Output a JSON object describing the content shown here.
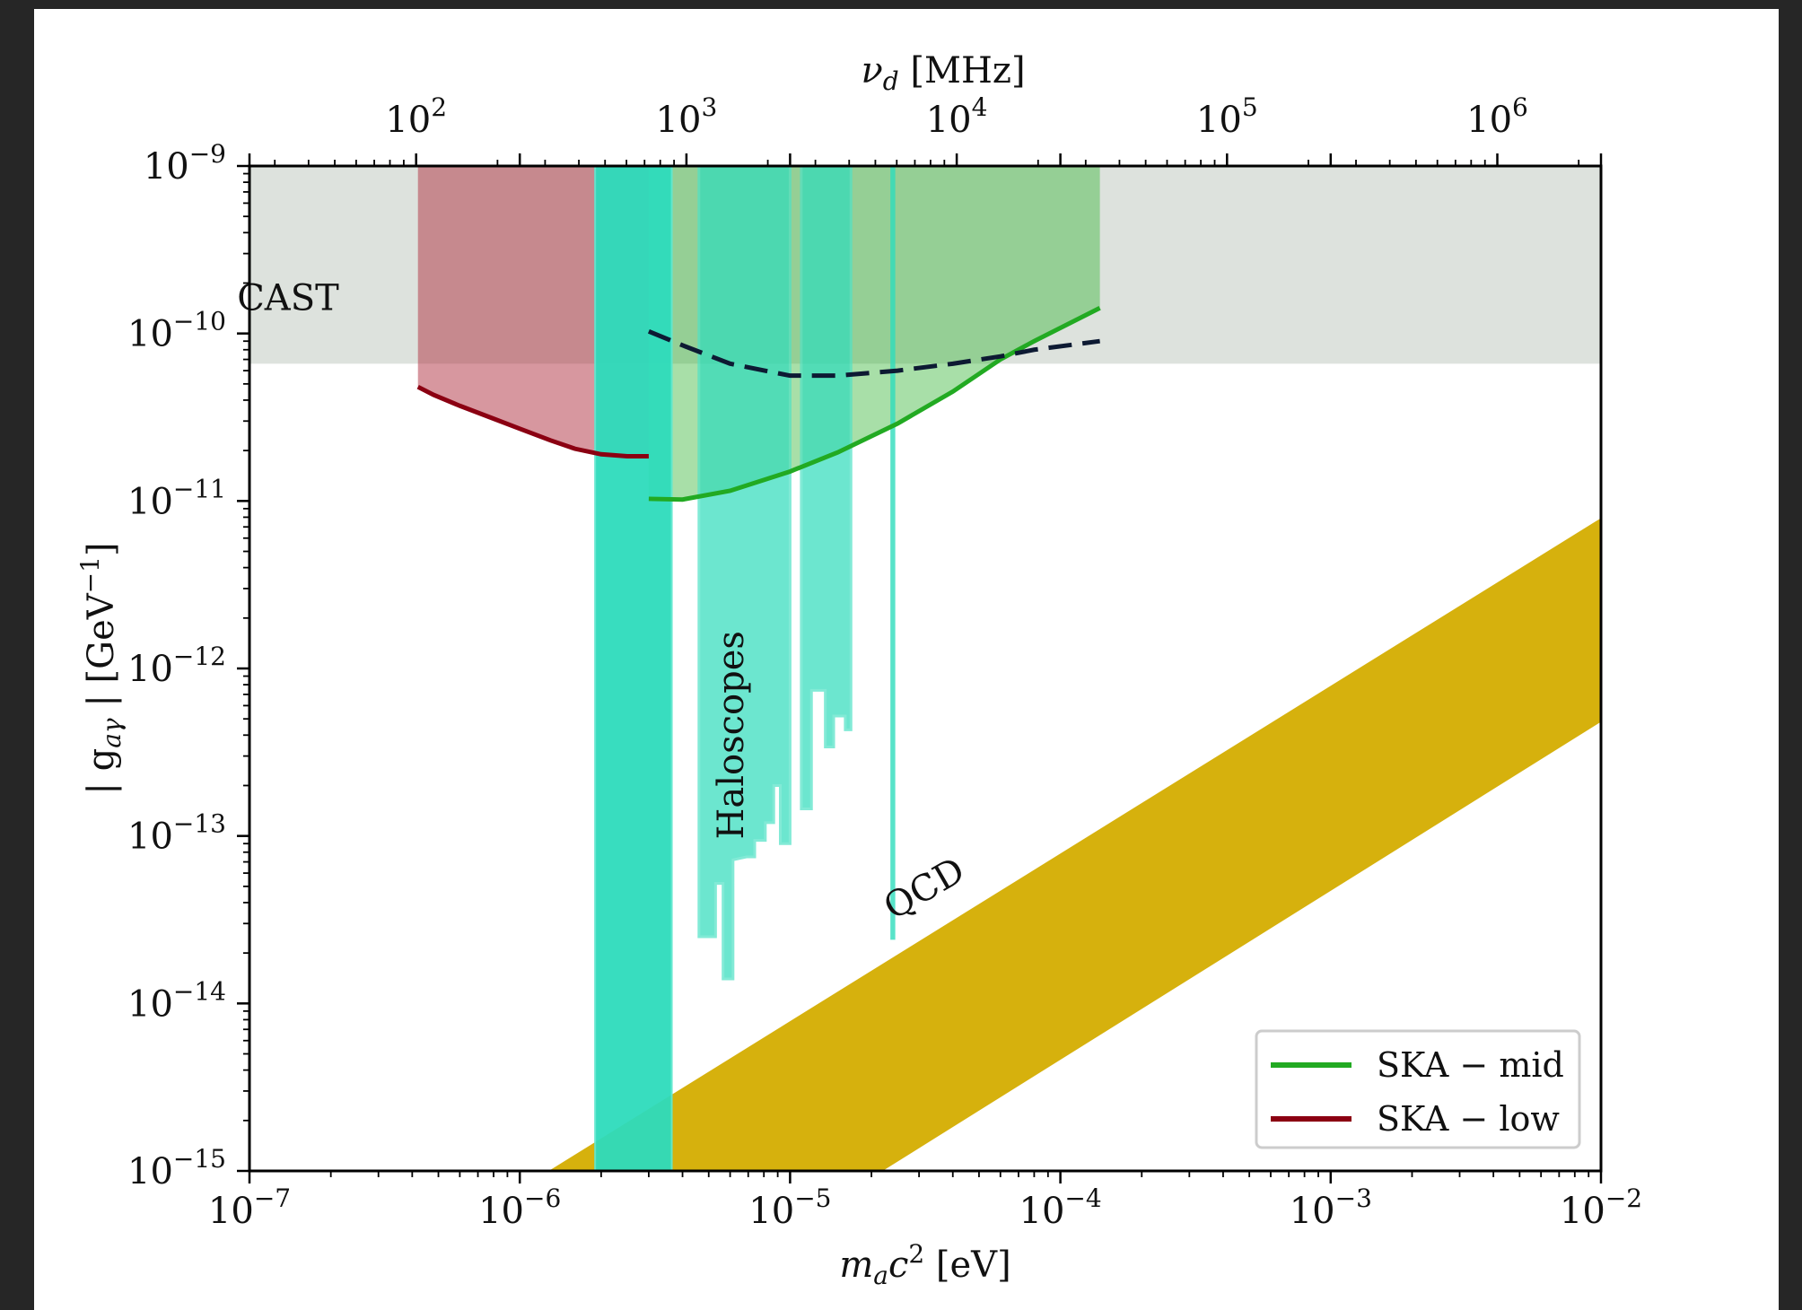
{
  "chart_data": {
    "type": "area",
    "xlabel_main": "m",
    "xlabel_sub": "a",
    "xlabel_tail": "c",
    "xlabel_sup": "2",
    "xlabel_unit": " [eV]",
    "top_label_main": "ν",
    "top_label_sub": "d",
    "top_label_unit": " [MHz]",
    "ylabel_pre": "| g",
    "ylabel_sub": "aγ",
    "ylabel_mid": " | [GeV",
    "ylabel_sup": "−1",
    "ylabel_post": "]",
    "scale": "log-log",
    "xlim": [
      1e-07,
      0.01
    ],
    "ylim": [
      1e-15,
      1e-09
    ],
    "top_xlim_mhz": [
      24.18,
      2418000
    ],
    "x_ticks": [
      {
        "value": 1e-07,
        "base": "10",
        "exp": "−7"
      },
      {
        "value": 1e-06,
        "base": "10",
        "exp": "−6"
      },
      {
        "value": 1e-05,
        "base": "10",
        "exp": "−5"
      },
      {
        "value": 0.0001,
        "base": "10",
        "exp": "−4"
      },
      {
        "value": 0.001,
        "base": "10",
        "exp": "−3"
      },
      {
        "value": 0.01,
        "base": "10",
        "exp": "−2"
      }
    ],
    "y_ticks": [
      {
        "value": 1e-09,
        "base": "10",
        "exp": "−9"
      },
      {
        "value": 1e-10,
        "base": "10",
        "exp": "−10"
      },
      {
        "value": 1e-11,
        "base": "10",
        "exp": "−11"
      },
      {
        "value": 1e-12,
        "base": "10",
        "exp": "−12"
      },
      {
        "value": 1e-13,
        "base": "10",
        "exp": "−13"
      },
      {
        "value": 1e-14,
        "base": "10",
        "exp": "−14"
      },
      {
        "value": 1e-15,
        "base": "10",
        "exp": "−15"
      }
    ],
    "top_ticks": [
      {
        "value": 100,
        "base": "10",
        "exp": "2"
      },
      {
        "value": 1000,
        "base": "10",
        "exp": "3"
      },
      {
        "value": 10000,
        "base": "10",
        "exp": "4"
      },
      {
        "value": 100000,
        "base": "10",
        "exp": "5"
      },
      {
        "value": 1000000,
        "base": "10",
        "exp": "6"
      }
    ],
    "regions": [
      {
        "id": "cast",
        "label": "CAST",
        "color": "#c6cfc6",
        "opacity": 0.6,
        "x": [
          1e-07,
          0.01
        ],
        "y_low": 6.6e-11,
        "y_high": 1e-09
      },
      {
        "id": "ska-low-band",
        "color": "#b03040",
        "opacity": 0.5,
        "x": [
          4.2e-07,
          4.8e-07,
          6e-07,
          8e-07,
          1e-06,
          1.3e-06,
          1.6e-06,
          2e-06,
          2.5e-06,
          3e-06
        ],
        "y_low": [
          4.8e-11,
          4.3e-11,
          3.7e-11,
          3.1e-11,
          2.7e-11,
          2.3e-11,
          2.05e-11,
          1.9e-11,
          1.85e-11,
          1.85e-11
        ],
        "y_high": 1e-09
      },
      {
        "id": "ska-mid-band",
        "color": "#3db83d",
        "opacity": 0.45,
        "x": [
          3e-06,
          4e-06,
          6e-06,
          1e-05,
          1.5e-05,
          2.5e-05,
          4e-05,
          6e-05,
          8e-05,
          0.00014
        ],
        "y_low": [
          1.03e-11,
          1.02e-11,
          1.15e-11,
          1.5e-11,
          1.95e-11,
          2.9e-11,
          4.5e-11,
          7e-11,
          9e-11,
          1.42e-10
        ],
        "y_high": 1e-09
      },
      {
        "id": "halo-main",
        "label": "Haloscopes",
        "color": "#2edcbc",
        "opacity": 0.95,
        "x": [
          1.9e-06,
          3.65e-06
        ],
        "y_low": 1e-15,
        "y_high": 1e-09
      },
      {
        "id": "halo-mid",
        "color": "#2edcbc",
        "opacity": 0.7,
        "x": [
          4.6e-06,
          4.6e-06,
          5.3e-06,
          5.3e-06,
          5.65e-06,
          5.65e-06,
          6.15e-06,
          6.15e-06,
          6.9e-06,
          7.4e-06,
          7.4e-06,
          8.1e-06,
          8.1e-06,
          8.7e-06,
          8.7e-06,
          9.2e-06,
          9.2e-06,
          1e-05,
          1e-05
        ],
        "y_bottom": [
          1e-09,
          2.5e-14,
          2.5e-14,
          5.2e-14,
          5.2e-14,
          1.4e-14,
          1.4e-14,
          7.2e-14,
          7.5e-14,
          7.5e-14,
          9.4e-14,
          9.4e-14,
          1.2e-13,
          1.2e-13,
          2e-13,
          2e-13,
          9e-14,
          9e-14,
          1e-09
        ]
      },
      {
        "id": "halo-right",
        "color": "#2edcbc",
        "opacity": 0.7,
        "x": [
          1.1e-05,
          1.1e-05,
          1.2e-05,
          1.2e-05,
          1.35e-05,
          1.35e-05,
          1.45e-05,
          1.45e-05,
          1.6e-05,
          1.6e-05,
          1.68e-05,
          1.68e-05
        ],
        "y_bottom": [
          1e-09,
          1.45e-13,
          1.45e-13,
          7.4e-13,
          7.4e-13,
          3.4e-13,
          3.4e-13,
          5.2e-13,
          5.2e-13,
          4.3e-13,
          4.3e-13,
          1e-09
        ]
      },
      {
        "id": "halo-narrow",
        "color": "#2edcbc",
        "opacity": 0.8,
        "x": [
          2.35e-05,
          2.45e-05
        ],
        "y_low": 2.4e-14,
        "y_high": 1e-09
      },
      {
        "id": "qcd",
        "label": "QCD",
        "color": "#d4ad00",
        "opacity": 0.95,
        "x": [
          1e-07,
          0.01
        ],
        "upper_line": {
          "x": [
            1.28e-06,
            0.01
          ],
          "y": [
            1e-15,
            7.9e-12
          ]
        },
        "lower_line": {
          "x": [
            2.2e-05,
            0.01
          ],
          "y": [
            1e-15,
            4.8e-13
          ]
        }
      }
    ],
    "series": [
      {
        "name": "SKA − mid",
        "color": "#22aa22",
        "style": "solid",
        "x": [
          3e-06,
          4e-06,
          6e-06,
          1e-05,
          1.5e-05,
          2.5e-05,
          4e-05,
          6e-05,
          8e-05,
          0.00014
        ],
        "y": [
          1.03e-11,
          1.02e-11,
          1.15e-11,
          1.5e-11,
          1.95e-11,
          2.9e-11,
          4.5e-11,
          7e-11,
          9e-11,
          1.42e-10
        ]
      },
      {
        "name": "SKA − low",
        "color": "#8b0012",
        "style": "solid",
        "x": [
          4.2e-07,
          4.8e-07,
          6e-07,
          8e-07,
          1e-06,
          1.3e-06,
          1.6e-06,
          2e-06,
          2.5e-06,
          3e-06
        ],
        "y": [
          4.8e-11,
          4.3e-11,
          3.7e-11,
          3.1e-11,
          2.7e-11,
          2.3e-11,
          2.05e-11,
          1.9e-11,
          1.85e-11,
          1.85e-11
        ]
      },
      {
        "id": "dashed",
        "color": "#0d1a33",
        "style": "dashed",
        "x": [
          3e-06,
          4e-06,
          6e-06,
          1e-05,
          1.5e-05,
          2.5e-05,
          4e-05,
          6e-05,
          8e-05,
          0.00014
        ],
        "y": [
          1.03e-10,
          8.5e-11,
          6.6e-11,
          5.6e-11,
          5.6e-11,
          6e-11,
          6.6e-11,
          7.3e-11,
          8e-11,
          9e-11
        ]
      }
    ],
    "annotations": [
      {
        "text": "CAST",
        "x": 9e-08,
        "y": 1.38e-10,
        "rotate": 0
      },
      {
        "text": "Haloscopes",
        "x": 6.7e-06,
        "y": 4e-13,
        "rotate": -90
      },
      {
        "text": "QCD",
        "x": 3.3e-05,
        "y": 4.2e-14,
        "rotate": -30
      }
    ],
    "legend": {
      "position": "lower-right",
      "entries": [
        {
          "label": "SKA − mid",
          "color": "#22aa22"
        },
        {
          "label": "SKA − low",
          "color": "#8b0012"
        }
      ]
    }
  }
}
